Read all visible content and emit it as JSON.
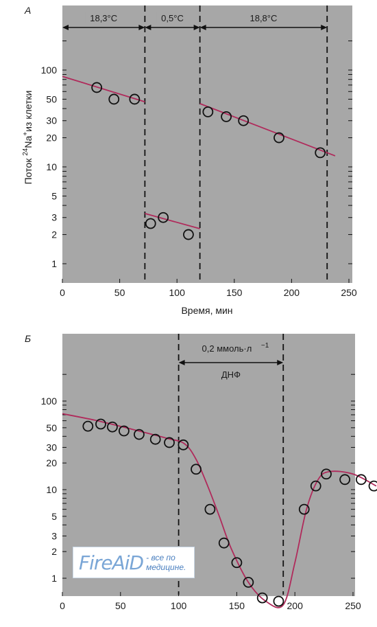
{
  "chart_data": [
    {
      "type": "scatter",
      "panel_label": "А",
      "title": "",
      "xlabel": "Время, мин",
      "ylabel_prefix": "Поток ",
      "ylabel_super": "24",
      "ylabel_main": "Na",
      "ylabel_plus": "+",
      "ylabel_suffix": "из клетки",
      "x_ticks": [
        0,
        50,
        100,
        150,
        200,
        250
      ],
      "y_ticks": [
        1,
        2,
        3,
        5,
        10,
        20,
        30,
        50,
        100
      ],
      "xlim": [
        0,
        255
      ],
      "ylim": [
        0.7,
        200
      ],
      "y_scale": "log",
      "sections": [
        {
          "label": "18,3°C",
          "x_start": 0,
          "x_end": 72
        },
        {
          "label": "0,5°C",
          "x_start": 72,
          "x_end": 120
        },
        {
          "label": "18,8°C",
          "x_start": 120,
          "x_end": 231
        }
      ],
      "dashed_lines_x": [
        72,
        120,
        231
      ],
      "series": [
        {
          "values_x": [
            30,
            45,
            63
          ],
          "values_y": [
            66,
            50,
            50
          ]
        },
        {
          "values_x": [
            77,
            88,
            110
          ],
          "values_y": [
            2.6,
            3.0,
            2.0
          ]
        },
        {
          "values_x": [
            127,
            143,
            158,
            189,
            225
          ],
          "values_y": [
            37,
            33,
            30,
            20,
            14
          ]
        }
      ],
      "fit_lines": [
        {
          "x": [
            0,
            72
          ],
          "y": [
            86,
            47
          ]
        },
        {
          "x": [
            72,
            120
          ],
          "y": [
            3.3,
            2.3
          ]
        },
        {
          "x": [
            120,
            238
          ],
          "y": [
            45,
            13
          ]
        }
      ]
    },
    {
      "type": "scatter",
      "panel_label": "Б",
      "title": "",
      "xlabel": "",
      "x_ticks": [
        0,
        50,
        100,
        150,
        200,
        250
      ],
      "y_ticks": [
        1,
        2,
        3,
        5,
        10,
        20,
        30,
        50,
        100
      ],
      "xlim": [
        0,
        270
      ],
      "ylim": [
        0.6,
        250
      ],
      "y_scale": "log",
      "treatment": {
        "label_line1": "0,2 ммоль·л",
        "label_sup": "−1",
        "label_line2": "ДНФ",
        "x_start": 100,
        "x_end": 190
      },
      "dashed_lines_x": [
        100,
        190
      ],
      "points_x": [
        22,
        33,
        43,
        53,
        66,
        80,
        92,
        104,
        115,
        127,
        139,
        150,
        160,
        172,
        186,
        208,
        218,
        227,
        243,
        257,
        268
      ],
      "points_y": [
        52,
        55,
        51,
        46,
        42,
        37,
        34,
        32,
        17,
        6,
        2.5,
        1.5,
        0.9,
        0.6,
        0.55,
        6,
        11,
        15,
        13,
        13,
        11
      ],
      "curve_x": [
        0,
        30,
        60,
        90,
        105,
        115,
        125,
        135,
        145,
        160,
        175,
        190,
        200,
        210,
        220,
        230,
        250,
        270
      ],
      "curve_y": [
        72,
        60,
        48,
        38,
        33,
        22,
        11,
        5,
        2.2,
        0.9,
        0.55,
        0.5,
        1.5,
        6,
        13,
        16,
        15,
        11
      ],
      "colors": {
        "curve": "#b02a5b",
        "points": "#111111",
        "background": "#a8a8a8"
      }
    }
  ],
  "watermark": {
    "logo": "FireAiD",
    "text_line1": "- все по",
    "text_line2": "медицине."
  }
}
